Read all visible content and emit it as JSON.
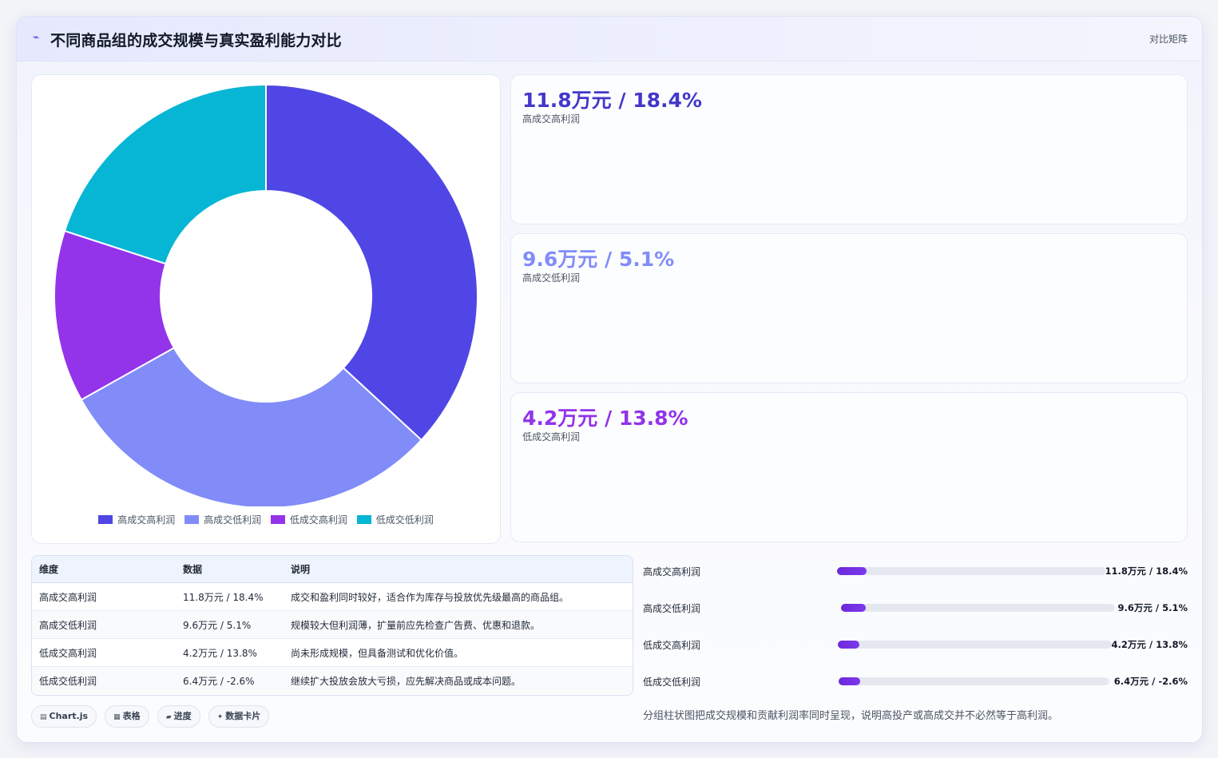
{
  "header": {
    "title": "不同商品组的成交规模与真实盈利能力对比",
    "tag": "对比矩阵"
  },
  "chart_data": {
    "type": "pie",
    "donut": true,
    "categories": [
      "高成交高利润",
      "高成交低利润",
      "低成交高利润",
      "低成交低利润"
    ],
    "values": [
      11.8,
      9.6,
      4.2,
      6.4
    ],
    "colors": [
      "#4f46e5",
      "#818cf8",
      "#9333ea",
      "#06b6d4"
    ],
    "legend_position": "bottom"
  },
  "kpis": [
    {
      "value": "11.8万元 / 18.4%",
      "label": "高成交高利润",
      "color": "#4338ca"
    },
    {
      "value": "9.6万元 / 5.1%",
      "label": "高成交低利润",
      "color": "#818cf8"
    },
    {
      "value": "4.2万元 / 13.8%",
      "label": "低成交高利润",
      "color": "#9333ea"
    }
  ],
  "table": {
    "headers": [
      "维度",
      "数据",
      "说明"
    ],
    "rows": [
      [
        "高成交高利润",
        "11.8万元 / 18.4%",
        "成交和盈利同时较好，适合作为库存与投放优先级最高的商品组。"
      ],
      [
        "高成交低利润",
        "9.6万元 / 5.1%",
        "规模较大但利润薄，扩量前应先检查广告费、优惠和退款。"
      ],
      [
        "低成交高利润",
        "4.2万元 / 13.8%",
        "尚未形成规模，但具备测试和优化价值。"
      ],
      [
        "低成交低利润",
        "6.4万元 / -2.6%",
        "继续扩大投放会放大亏损，应先解决商品或成本问题。"
      ]
    ]
  },
  "chips": [
    {
      "icon": "▤",
      "label": "Chart.js"
    },
    {
      "icon": "▦",
      "label": "表格"
    },
    {
      "icon": "▰",
      "label": "进度"
    },
    {
      "icon": "✦",
      "label": "数据卡片"
    }
  ],
  "progress": [
    {
      "label": "高成交高利润",
      "value": "11.8万元 / 18.4%",
      "fraction": 0.11
    },
    {
      "label": "高成交低利润",
      "value": "9.6万元 / 5.1%",
      "fraction": 0.09
    },
    {
      "label": "低成交高利润",
      "value": "4.2万元 / 13.8%",
      "fraction": 0.08
    },
    {
      "label": "低成交低利润",
      "value": "6.4万元 / -2.6%",
      "fraction": 0.08
    }
  ],
  "note": "分组柱状图把成交规模和贡献利润率同时呈现，说明高投产或高成交并不必然等于高利润。"
}
